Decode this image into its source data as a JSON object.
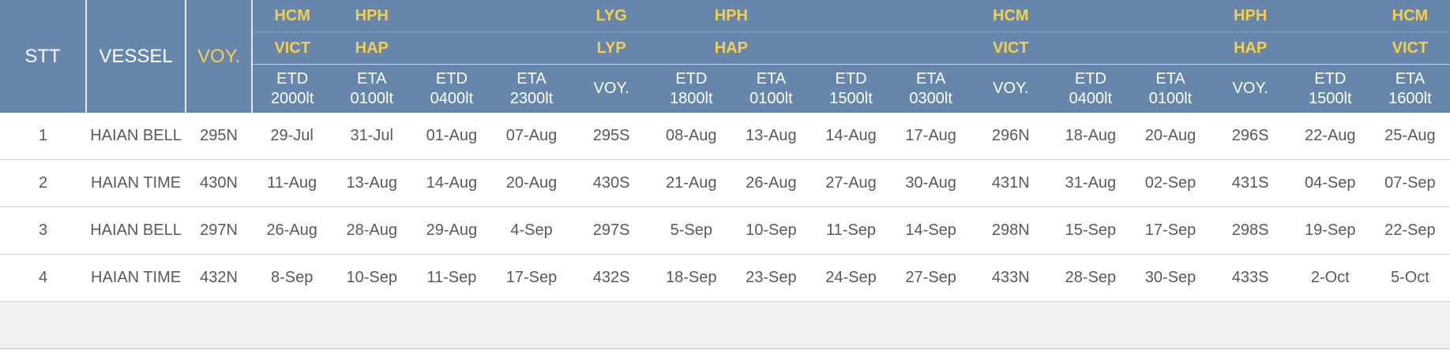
{
  "header": {
    "stt": "STT",
    "vessel": "VESSEL",
    "voy": "VOY.",
    "ports_row1": [
      "HCM",
      "HPH",
      "",
      "",
      "LYG",
      "HPH",
      "",
      "",
      "HCM",
      "",
      "",
      "HPH",
      "",
      "HCM"
    ],
    "ports_row2": [
      "VICT",
      "HAP",
      "",
      "",
      "LYP",
      "HAP",
      "",
      "",
      "VICT",
      "",
      "",
      "HAP",
      "",
      "VICT"
    ],
    "sub": [
      {
        "l1": "ETD",
        "l2": "2000lt"
      },
      {
        "l1": "ETA",
        "l2": "0100lt"
      },
      {
        "l1": "ETD",
        "l2": "0400lt"
      },
      {
        "l1": "ETA",
        "l2": "2300lt"
      },
      {
        "l1": "VOY.",
        "l2": ""
      },
      {
        "l1": "ETD",
        "l2": "1800lt"
      },
      {
        "l1": "ETA",
        "l2": "0100lt"
      },
      {
        "l1": "ETD",
        "l2": "1500lt"
      },
      {
        "l1": "ETA",
        "l2": "0300lt"
      },
      {
        "l1": "VOY.",
        "l2": ""
      },
      {
        "l1": "ETD",
        "l2": "0400lt"
      },
      {
        "l1": "ETA",
        "l2": "0100lt"
      },
      {
        "l1": "VOY.",
        "l2": ""
      },
      {
        "l1": "ETD",
        "l2": "1500lt"
      },
      {
        "l1": "ETA",
        "l2": "1600lt"
      }
    ]
  },
  "rows": [
    [
      "1",
      "HAIAN BELL",
      "295N",
      "29-Jul",
      "31-Jul",
      "01-Aug",
      "07-Aug",
      "295S",
      "08-Aug",
      "13-Aug",
      "14-Aug",
      "17-Aug",
      "296N",
      "18-Aug",
      "20-Aug",
      "296S",
      "22-Aug",
      "25-Aug"
    ],
    [
      "2",
      "HAIAN TIME",
      "430N",
      "11-Aug",
      "13-Aug",
      "14-Aug",
      "20-Aug",
      "430S",
      "21-Aug",
      "26-Aug",
      "27-Aug",
      "30-Aug",
      "431N",
      "31-Aug",
      "02-Sep",
      "431S",
      "04-Sep",
      "07-Sep"
    ],
    [
      "3",
      "HAIAN BELL",
      "297N",
      "26-Aug",
      "28-Aug",
      "29-Aug",
      "4-Sep",
      "297S",
      "5-Sep",
      "10-Sep",
      "11-Sep",
      "14-Sep",
      "298N",
      "15-Sep",
      "17-Sep",
      "298S",
      "19-Sep",
      "22-Sep"
    ],
    [
      "4",
      "HAIAN TIME",
      "432N",
      "8-Sep",
      "10-Sep",
      "11-Sep",
      "17-Sep",
      "432S",
      "18-Sep",
      "23-Sep",
      "24-Sep",
      "27-Sep",
      "433N",
      "28-Sep",
      "30-Sep",
      "433S",
      "2-Oct",
      "5-Oct"
    ]
  ],
  "colors": {
    "header_bg": "#6786ab",
    "port_text": "#f5cf4a",
    "header_text": "#ffffff",
    "body_text": "#595959",
    "filler_bg": "#f0f0f0"
  }
}
